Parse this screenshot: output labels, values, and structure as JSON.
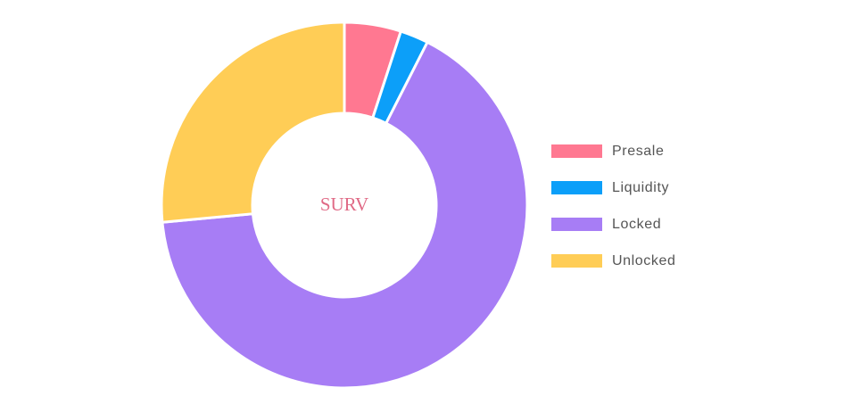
{
  "chart_data": {
    "type": "pie",
    "variant": "doughnut",
    "center_text": "SURV",
    "center_text_color": "#e06a86",
    "categories": [
      "Presale",
      "Liquidity",
      "Locked",
      "Unlocked"
    ],
    "values": [
      5,
      2.5,
      66,
      26.5
    ],
    "unit": "%",
    "colors": [
      "#ff7891",
      "#0c9ff9",
      "#a77df5",
      "#ffcd56"
    ],
    "legend_position": "right"
  }
}
